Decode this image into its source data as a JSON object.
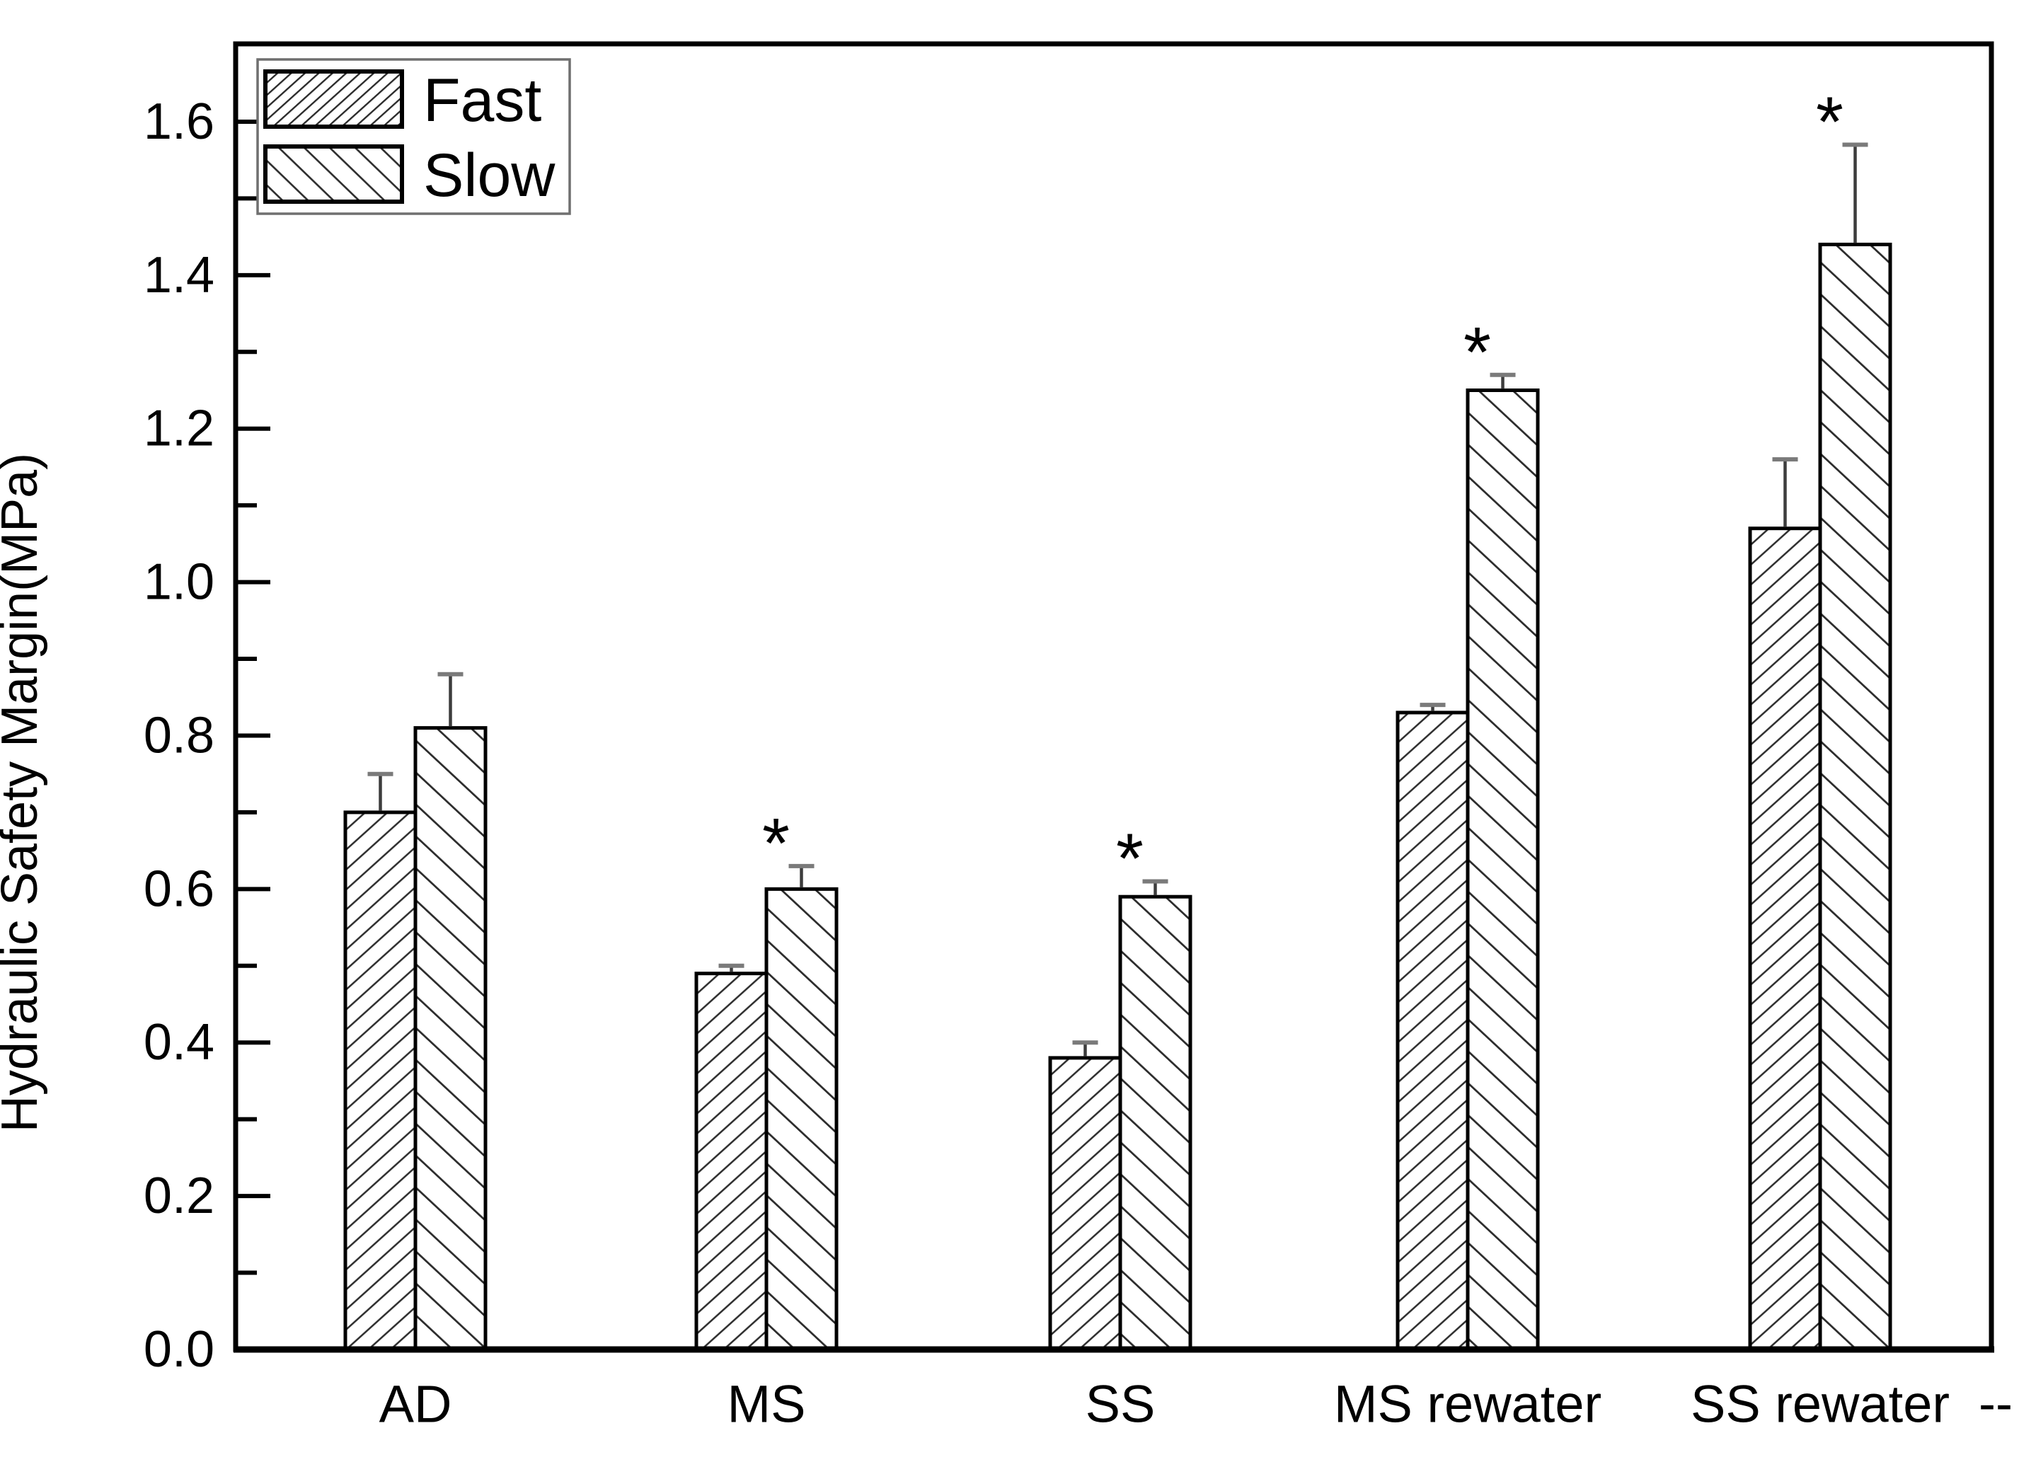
{
  "chart_data": {
    "type": "bar",
    "title": "",
    "ylabel": "Hydraulic Safety Margin(MPa)",
    "xlabel": "",
    "categories": [
      "AD",
      "MS",
      "SS",
      "MS rewater",
      "SS rewater"
    ],
    "series": [
      {
        "name": "Fast",
        "hatch": "forward-diagonal",
        "values": [
          0.7,
          0.49,
          0.38,
          0.83,
          1.07
        ],
        "errors_plus": [
          0.05,
          0.01,
          0.02,
          0.01,
          0.09
        ]
      },
      {
        "name": "Slow",
        "hatch": "backward-diagonal",
        "values": [
          0.81,
          0.6,
          0.59,
          1.25,
          1.44
        ],
        "errors_plus": [
          0.07,
          0.03,
          0.02,
          0.02,
          0.13
        ]
      }
    ],
    "significance": {
      "symbol": "*",
      "series": "Slow",
      "flags": [
        false,
        true,
        true,
        true,
        true
      ]
    },
    "y_axis": {
      "min": 0.0,
      "max": 1.6,
      "major_step": 0.2,
      "minor_step": 0.1,
      "tick_labels": [
        "0.0",
        "0.2",
        "0.4",
        "0.6",
        "0.8",
        "1.0",
        "1.2",
        "1.4",
        "1.6"
      ]
    },
    "x_axis": {
      "overflow_label": "--"
    },
    "legend": {
      "position": "top-left",
      "items": [
        {
          "label": "Fast"
        },
        {
          "label": "Slow"
        }
      ]
    },
    "grid": false,
    "error_bars": "upper-only-with-cap",
    "styles": {
      "background": "#ffffff",
      "ink": "#000000",
      "hatch_line": "#2b2b2b",
      "error_bar_line": "#3d3d3d",
      "error_bar_cap": "#7a7a7a",
      "legend_border": "#6f6f6f"
    }
  }
}
